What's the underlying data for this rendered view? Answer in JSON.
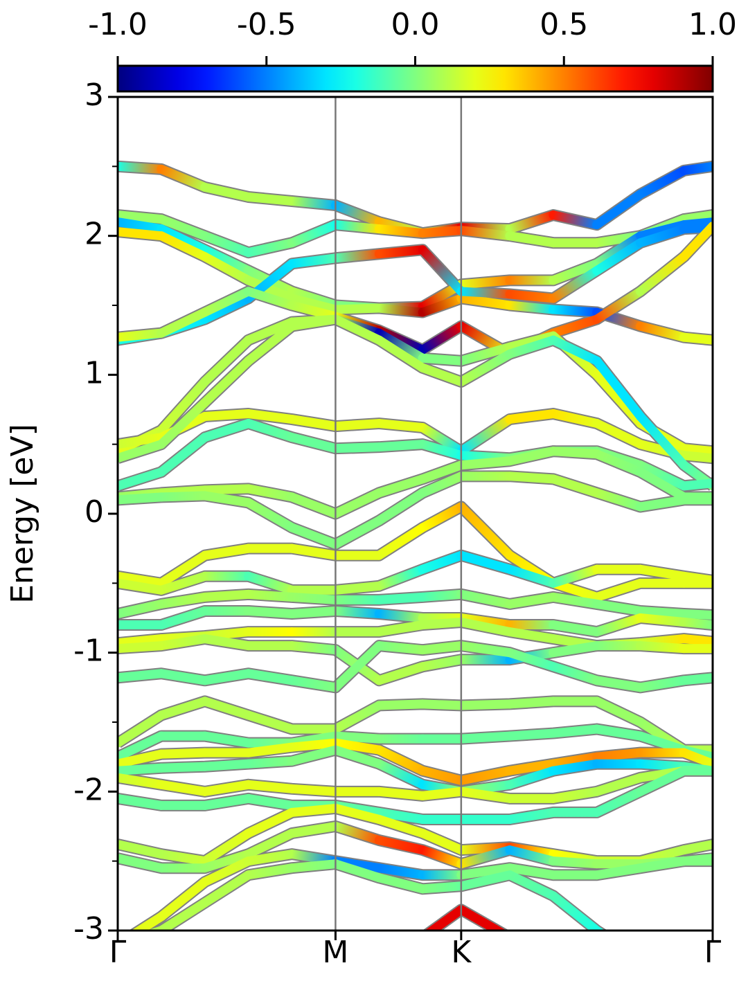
{
  "chart_data": {
    "type": "band",
    "y_label": "Energy [eV]",
    "x": [
      0,
      0.2,
      0.4,
      0.6,
      0.8,
      1.0,
      1.2,
      1.4,
      1.577,
      1.8,
      2.0,
      2.2,
      2.4,
      2.6,
      2.732
    ],
    "xlim": [
      0,
      2.732
    ],
    "xticks": [
      {
        "value": 0,
        "label": "Γ"
      },
      {
        "value": 1.0,
        "label": "M"
      },
      {
        "value": 1.577,
        "label": "K"
      },
      {
        "value": 2.732,
        "label": "Γ"
      }
    ],
    "ylim": [
      -3,
      3
    ],
    "yticks": [
      -3,
      -2,
      -1,
      0,
      1,
      2,
      3
    ],
    "yminorticks": [
      -2.5,
      -1.5,
      -0.5,
      0.5,
      1.5,
      2.5
    ],
    "colorbar": {
      "clim": [
        -1,
        1
      ],
      "ticks": [
        {
          "value": -1,
          "label": "-1.0"
        },
        -0.5,
        {
          "value": 0,
          "label": "0.0"
        },
        0.5,
        {
          "value": 1,
          "label": "1.0"
        }
      ]
    },
    "series": [
      {
        "values": [
          2.5,
          2.48,
          2.35,
          2.28,
          2.25,
          2.22,
          2.1,
          2.02,
          2.06,
          2.05,
          2.15,
          2.08,
          2.3,
          2.47,
          2.5
        ],
        "weights": [
          -0.2,
          0.5,
          0.1,
          0.1,
          0.1,
          -0.4,
          0.4,
          0.1,
          0.8,
          0.1,
          0.7,
          -0.5,
          -0.5,
          -0.6,
          -0.5
        ]
      },
      {
        "values": [
          2.15,
          2.12,
          2.0,
          1.88,
          1.95,
          2.08,
          2.05,
          2.02,
          2.04,
          2.0,
          1.95,
          1.95,
          2.0,
          2.12,
          2.15
        ],
        "weights": [
          0.05,
          0.05,
          0.0,
          -0.1,
          0.0,
          -0.2,
          0.3,
          0.5,
          0.6,
          0.1,
          0.1,
          0.1,
          0.0,
          0.05,
          0.05
        ]
      },
      {
        "values": [
          2.1,
          2.05,
          1.9,
          1.75,
          1.6,
          1.5,
          1.48,
          1.49,
          1.65,
          1.68,
          1.68,
          1.8,
          2.0,
          2.08,
          2.1
        ],
        "weights": [
          -0.4,
          -0.3,
          -0.2,
          0.0,
          0.1,
          0.0,
          0.0,
          0.8,
          0.2,
          0.5,
          0.1,
          0.0,
          -0.5,
          -0.5,
          -0.5
        ]
      },
      {
        "values": [
          2.03,
          2.0,
          1.85,
          1.68,
          1.55,
          1.47,
          1.48,
          1.45,
          1.55,
          1.5,
          1.47,
          1.45,
          1.35,
          1.27,
          1.25
        ],
        "weights": [
          0.3,
          0.3,
          0.2,
          0.1,
          0.1,
          0.1,
          0.1,
          0.9,
          0.4,
          0.3,
          -0.3,
          -0.6,
          0.5,
          0.2,
          0.2
        ]
      },
      {
        "values": [
          1.25,
          1.3,
          1.4,
          1.55,
          1.8,
          1.84,
          1.87,
          1.9,
          1.6,
          1.58,
          1.55,
          1.75,
          1.95,
          2.05,
          2.06
        ],
        "weights": [
          -0.2,
          -0.2,
          -0.3,
          -0.4,
          -0.3,
          -0.1,
          0.6,
          0.8,
          -0.3,
          0.6,
          0.5,
          -0.2,
          -0.4,
          -0.5,
          -0.5
        ]
      },
      {
        "values": [
          1.27,
          1.3,
          1.45,
          1.6,
          1.5,
          1.42,
          1.32,
          1.18,
          1.35,
          1.15,
          1.3,
          1.4,
          1.6,
          1.85,
          2.07
        ],
        "weights": [
          0.2,
          0.1,
          0.1,
          0.0,
          0.1,
          0.2,
          0.9,
          -0.9,
          0.8,
          0.2,
          0.5,
          0.6,
          0.1,
          0.3,
          0.3
        ]
      },
      {
        "values": [
          0.45,
          0.6,
          0.95,
          1.25,
          1.38,
          1.4,
          1.3,
          1.12,
          1.1,
          1.2,
          1.28,
          1.0,
          0.65,
          0.47,
          0.45
        ],
        "weights": [
          0.2,
          0.15,
          0.1,
          0.1,
          0.1,
          0.1,
          -0.9,
          0.0,
          0.0,
          0.1,
          0.1,
          0.2,
          0.2,
          0.2,
          0.2
        ]
      },
      {
        "values": [
          0.5,
          0.55,
          0.7,
          0.72,
          0.68,
          0.63,
          0.65,
          0.62,
          0.45,
          0.68,
          0.72,
          0.65,
          0.5,
          0.42,
          0.4
        ],
        "weights": [
          0.15,
          0.2,
          0.2,
          0.2,
          0.2,
          0.2,
          0.2,
          0.2,
          -0.3,
          0.3,
          0.3,
          0.2,
          0.2,
          0.15,
          0.15
        ]
      },
      {
        "values": [
          0.4,
          0.5,
          0.8,
          1.1,
          1.35,
          1.4,
          1.25,
          1.05,
          0.95,
          1.15,
          1.25,
          1.1,
          0.7,
          0.35,
          0.2
        ],
        "weights": [
          0.05,
          0.05,
          0.1,
          0.1,
          0.1,
          0.1,
          0.1,
          0.1,
          0.1,
          0.0,
          -0.1,
          -0.3,
          -0.3,
          -0.1,
          0.0
        ]
      },
      {
        "values": [
          0.2,
          0.3,
          0.55,
          0.65,
          0.55,
          0.47,
          0.48,
          0.5,
          0.42,
          0.4,
          0.45,
          0.45,
          0.35,
          0.2,
          0.22
        ],
        "weights": [
          -0.1,
          -0.1,
          -0.1,
          -0.1,
          -0.05,
          -0.05,
          -0.05,
          -0.05,
          -0.2,
          0.0,
          0.0,
          0.0,
          0.0,
          -0.1,
          -0.1
        ]
      },
      {
        "values": [
          0.12,
          0.15,
          0.17,
          0.18,
          0.12,
          0.0,
          0.15,
          0.25,
          0.35,
          0.38,
          0.45,
          0.43,
          0.3,
          0.12,
          0.12
        ],
        "weights": [
          0.05,
          0.1,
          0.1,
          0.1,
          0.05,
          0.05,
          0.05,
          0.05,
          0.05,
          0.05,
          0.05,
          0.05,
          0.0,
          0.0,
          0.0
        ]
      },
      {
        "values": [
          0.1,
          0.12,
          0.13,
          0.08,
          -0.1,
          -0.22,
          -0.05,
          0.15,
          0.27,
          0.27,
          0.25,
          0.15,
          0.05,
          0.1,
          0.1
        ],
        "weights": [
          0.0,
          0.0,
          0.05,
          0.05,
          0.0,
          0.0,
          0.0,
          0.0,
          0.05,
          0.1,
          0.1,
          0.1,
          0.0,
          0.0,
          0.0
        ]
      },
      {
        "values": [
          -0.45,
          -0.5,
          -0.3,
          -0.25,
          -0.25,
          -0.3,
          -0.3,
          -0.1,
          0.05,
          -0.3,
          -0.5,
          -0.6,
          -0.5,
          -0.5,
          -0.5
        ],
        "weights": [
          0.2,
          0.2,
          0.2,
          0.2,
          0.2,
          0.2,
          0.2,
          0.25,
          0.4,
          0.3,
          0.25,
          0.2,
          0.2,
          0.2,
          0.2
        ]
      },
      {
        "values": [
          -0.5,
          -0.55,
          -0.45,
          -0.45,
          -0.55,
          -0.55,
          -0.52,
          -0.4,
          -0.3,
          -0.4,
          -0.5,
          -0.4,
          -0.4,
          -0.45,
          -0.48
        ],
        "weights": [
          0.15,
          0.15,
          0.1,
          -0.1,
          0.1,
          0.1,
          0.1,
          -0.2,
          -0.3,
          -0.3,
          -0.1,
          0.2,
          0.2,
          0.2,
          0.2
        ]
      },
      {
        "values": [
          -0.72,
          -0.65,
          -0.6,
          -0.58,
          -0.6,
          -0.62,
          -0.62,
          -0.6,
          -0.58,
          -0.65,
          -0.6,
          -0.65,
          -0.7,
          -0.72,
          -0.73
        ],
        "weights": [
          0.0,
          0.05,
          0.1,
          0.1,
          0.05,
          0.0,
          -0.1,
          -0.1,
          0.0,
          0.05,
          0.05,
          0.0,
          0.0,
          0.0,
          0.0
        ]
      },
      {
        "values": [
          -0.8,
          -0.8,
          -0.7,
          -0.7,
          -0.72,
          -0.7,
          -0.72,
          -0.75,
          -0.75,
          -0.8,
          -0.8,
          -0.85,
          -0.75,
          -0.78,
          -0.8
        ],
        "weights": [
          -0.1,
          -0.1,
          -0.05,
          0.0,
          0.0,
          0.0,
          -0.4,
          0.1,
          0.2,
          0.4,
          0.0,
          0.0,
          0.2,
          0.1,
          0.0
        ]
      },
      {
        "values": [
          -0.93,
          -0.9,
          -0.88,
          -0.85,
          -0.85,
          -0.85,
          -0.85,
          -0.8,
          -0.78,
          -0.85,
          -0.9,
          -0.95,
          -0.93,
          -0.9,
          -0.92
        ],
        "weights": [
          0.2,
          0.2,
          0.15,
          0.2,
          0.25,
          0.1,
          0.1,
          0.1,
          0.1,
          0.1,
          0.1,
          0.1,
          0.15,
          0.3,
          0.3
        ]
      },
      {
        "values": [
          -0.97,
          -0.95,
          -0.9,
          -0.95,
          -0.95,
          -0.98,
          -1.2,
          -1.1,
          -1.05,
          -1.05,
          -1.0,
          -0.95,
          -0.95,
          -0.97,
          -0.97
        ],
        "weights": [
          0.15,
          0.15,
          0.1,
          0.1,
          0.1,
          0.0,
          0.1,
          0.1,
          0.05,
          -0.4,
          0.0,
          0.0,
          0.1,
          0.2,
          0.2
        ]
      },
      {
        "values": [
          -1.18,
          -1.15,
          -1.2,
          -1.15,
          -1.2,
          -1.25,
          -0.95,
          -0.98,
          -0.95,
          -1.0,
          -1.1,
          -1.2,
          -1.25,
          -1.2,
          -1.18
        ],
        "weights": [
          -0.05,
          -0.05,
          -0.05,
          -0.05,
          -0.05,
          0.0,
          0.0,
          0.05,
          0.05,
          0.0,
          -0.1,
          0.0,
          0.0,
          -0.05,
          -0.05
        ]
      },
      {
        "values": [
          -1.65,
          -1.45,
          -1.35,
          -1.45,
          -1.55,
          -1.55,
          -1.38,
          -1.37,
          -1.38,
          -1.37,
          -1.35,
          -1.35,
          -1.5,
          -1.7,
          -1.7
        ],
        "weights": [
          0.1,
          0.1,
          0.1,
          0.1,
          0.1,
          0.1,
          0.05,
          0.05,
          0.05,
          0.05,
          0.05,
          0.05,
          0.05,
          0.1,
          0.1
        ]
      },
      {
        "values": [
          -1.75,
          -1.6,
          -1.6,
          -1.65,
          -1.65,
          -1.6,
          -1.62,
          -1.62,
          -1.62,
          -1.6,
          -1.58,
          -1.55,
          -1.6,
          -1.7,
          -1.75
        ],
        "weights": [
          -0.05,
          -0.05,
          -0.05,
          -0.05,
          0.0,
          0.0,
          0.0,
          -0.05,
          -0.05,
          -0.05,
          -0.05,
          -0.05,
          -0.05,
          -0.05,
          -0.05
        ]
      },
      {
        "values": [
          -1.8,
          -1.73,
          -1.72,
          -1.72,
          -1.68,
          -1.65,
          -1.7,
          -1.85,
          -1.92,
          -1.85,
          -1.8,
          -1.75,
          -1.72,
          -1.72,
          -1.8
        ],
        "weights": [
          0.2,
          0.2,
          0.2,
          0.2,
          0.2,
          0.25,
          0.3,
          0.4,
          0.45,
          0.4,
          0.4,
          0.5,
          0.45,
          0.3,
          0.2
        ]
      },
      {
        "values": [
          -1.85,
          -1.83,
          -1.82,
          -1.8,
          -1.78,
          -1.7,
          -1.8,
          -1.95,
          -2.0,
          -1.95,
          -1.85,
          -1.8,
          -1.8,
          -1.82,
          -1.85
        ],
        "weights": [
          -0.05,
          -0.05,
          -0.05,
          -0.05,
          0.0,
          0.0,
          0.0,
          -0.3,
          0.05,
          -0.1,
          -0.3,
          -0.4,
          -0.3,
          -0.1,
          -0.05
        ]
      },
      {
        "values": [
          -1.9,
          -1.95,
          -2.0,
          -1.95,
          -1.98,
          -2.0,
          -2.0,
          -2.03,
          -2.0,
          -2.05,
          -2.05,
          -2.0,
          -1.9,
          -1.85,
          -1.85
        ],
        "weights": [
          0.15,
          0.2,
          0.2,
          0.2,
          0.2,
          0.2,
          0.2,
          0.2,
          0.2,
          0.15,
          0.15,
          0.1,
          0.1,
          0.1,
          0.1
        ]
      },
      {
        "values": [
          -2.05,
          -2.1,
          -2.1,
          -2.05,
          -2.1,
          -2.1,
          -2.15,
          -2.2,
          -2.2,
          -2.2,
          -2.15,
          -2.15,
          -2.0,
          -1.85,
          -1.85
        ],
        "weights": [
          -0.05,
          -0.05,
          -0.05,
          -0.05,
          -0.05,
          -0.05,
          -0.1,
          -0.15,
          -0.15,
          -0.15,
          -0.1,
          -0.1,
          -0.05,
          -0.05,
          -0.05
        ]
      },
      {
        "values": [
          -2.38,
          -2.45,
          -2.5,
          -2.3,
          -2.15,
          -2.12,
          -2.2,
          -2.3,
          -2.42,
          -2.4,
          -2.45,
          -2.5,
          -2.5,
          -2.42,
          -2.38
        ],
        "weights": [
          0.1,
          0.1,
          0.15,
          0.2,
          0.2,
          0.2,
          0.2,
          0.2,
          0.2,
          0.6,
          0.25,
          0.15,
          0.15,
          0.1,
          0.1
        ]
      },
      {
        "values": [
          -2.48,
          -2.55,
          -2.55,
          -2.45,
          -2.3,
          -2.25,
          -2.35,
          -2.42,
          -2.52,
          -2.42,
          -2.5,
          -2.52,
          -2.52,
          -2.5,
          -2.48
        ],
        "weights": [
          0.0,
          0.0,
          0.05,
          0.1,
          0.1,
          0.1,
          0.6,
          0.7,
          0.3,
          -0.4,
          0.0,
          0.05,
          0.05,
          0.0,
          0.0
        ]
      },
      {
        "values": [
          -3.1,
          -2.9,
          -2.65,
          -2.5,
          -2.45,
          -2.5,
          -2.55,
          -2.6,
          -2.6,
          -2.55,
          -2.6,
          -2.6,
          -2.55,
          -2.5,
          -2.5
        ],
        "weights": [
          0.2,
          0.2,
          0.2,
          0.15,
          0.1,
          -0.5,
          -0.5,
          -0.4,
          0.0,
          0.0,
          0.0,
          0.0,
          0.0,
          0.0,
          0.0
        ]
      },
      {
        "values": [
          -3.1,
          -3.0,
          -2.8,
          -2.6,
          -2.55,
          -2.52,
          -2.62,
          -2.7,
          -2.68,
          -2.6,
          -2.75,
          -3.0,
          -3.2,
          null,
          null
        ],
        "weights": [
          0.1,
          0.1,
          0.1,
          0.1,
          0.05,
          0.0,
          0.0,
          0.0,
          -0.05,
          -0.05,
          -0.1,
          -0.2,
          -0.2,
          null,
          null
        ]
      },
      {
        "values": [
          null,
          null,
          null,
          null,
          null,
          null,
          -3.2,
          -3.05,
          -2.85,
          -3.05,
          null,
          null,
          null,
          null,
          null
        ],
        "weights": [
          null,
          null,
          null,
          null,
          null,
          null,
          0.8,
          0.8,
          0.8,
          0.8,
          null,
          null,
          null,
          null,
          null
        ]
      }
    ]
  }
}
